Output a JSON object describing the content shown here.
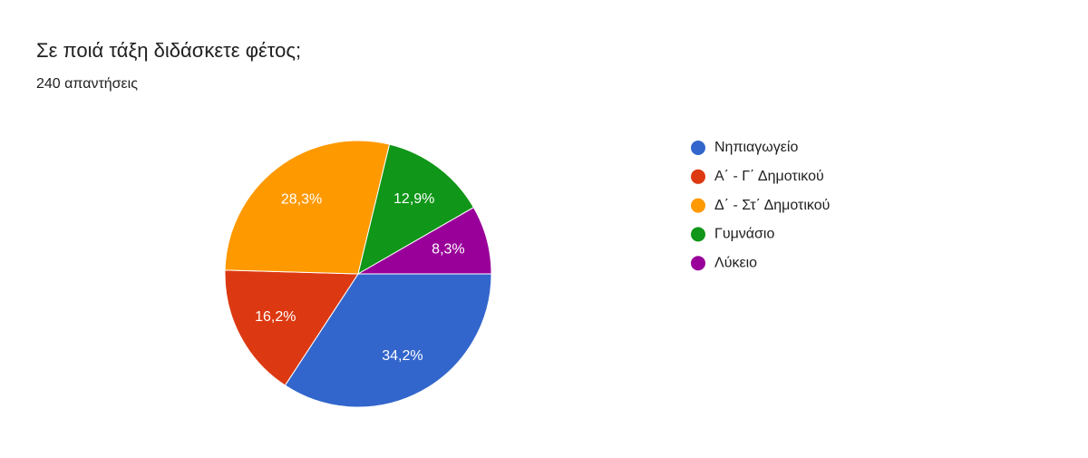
{
  "chart_data": {
    "type": "pie",
    "title": "Σε ποιά τάξη διδάσκετε φέτος;",
    "subtitle": "240 απαντήσεις",
    "categories": [
      "Νηπιαγωγείο",
      "Α΄ - Γ΄ Δημοτικού",
      "Δ΄ - Στ΄ Δημοτικού",
      "Γυμνάσιο",
      "Λύκειο"
    ],
    "values": [
      34.2,
      16.2,
      28.3,
      12.9,
      8.3
    ],
    "value_labels": [
      "34,2%",
      "16,2%",
      "28,3%",
      "12,9%",
      "8,3%"
    ],
    "colors": [
      "#3366cc",
      "#dc3912",
      "#ff9900",
      "#109618",
      "#990099"
    ],
    "legend": "right"
  }
}
